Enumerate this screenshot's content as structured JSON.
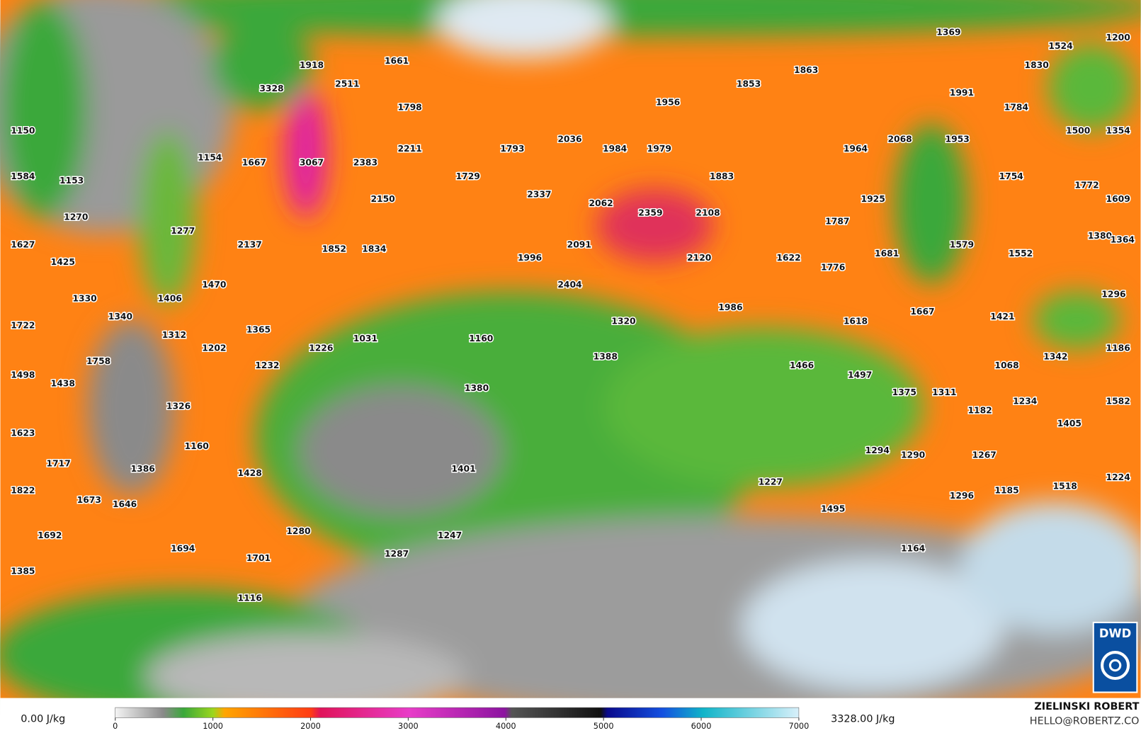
{
  "map": {
    "labels": [
      1369,
      1200,
      1524,
      1830,
      1918,
      1661,
      1863,
      3328,
      2511,
      1853,
      1991,
      1798,
      1956,
      1784,
      1150,
      1500,
      1354,
      2036,
      2068,
      1953,
      2211,
      1793,
      1984,
      1979,
      1964,
      1154,
      1667,
      3067,
      2383,
      1584,
      1153,
      1729,
      1883,
      1754,
      1772,
      2337,
      2150,
      1925,
      1609,
      2062,
      1270,
      2359,
      2108,
      1787,
      1277,
      1380,
      1364,
      1627,
      2137,
      1852,
      1834,
      2091,
      1579,
      1681,
      1552,
      1425,
      1996,
      1622,
      2120,
      1776,
      1470,
      2404,
      1330,
      1406,
      1296,
      1986,
      1340,
      1618,
      1667,
      1421,
      1320,
      1722,
      1365,
      1312,
      1031,
      1160,
      1202,
      1226,
      1186,
      1388,
      1342,
      1758,
      1232,
      1466,
      1068,
      1497,
      1498,
      1438,
      1380,
      1375,
      1311,
      1326,
      1234,
      1582,
      1182,
      1405,
      1623,
      1160,
      1294,
      1290,
      1267,
      1717,
      1386,
      1401,
      1428,
      1224,
      1822,
      1227,
      1518,
      1673,
      1646,
      1185,
      1296,
      1495,
      1280,
      1247,
      1692,
      1694,
      1164,
      1287,
      1701,
      1385,
      1116
    ]
  },
  "colorbar": {
    "min_label": "0.00 J/kg",
    "max_label": "3328.00 J/kg",
    "range": [
      0,
      7000
    ],
    "ticks": [
      0,
      1000,
      2000,
      3000,
      4000,
      5000,
      6000,
      7000
    ]
  },
  "credits": {
    "author": "ZIELINSKI ROBERT",
    "contact": "HELLO@ROBERTZ.CO",
    "logo": "DWD"
  }
}
